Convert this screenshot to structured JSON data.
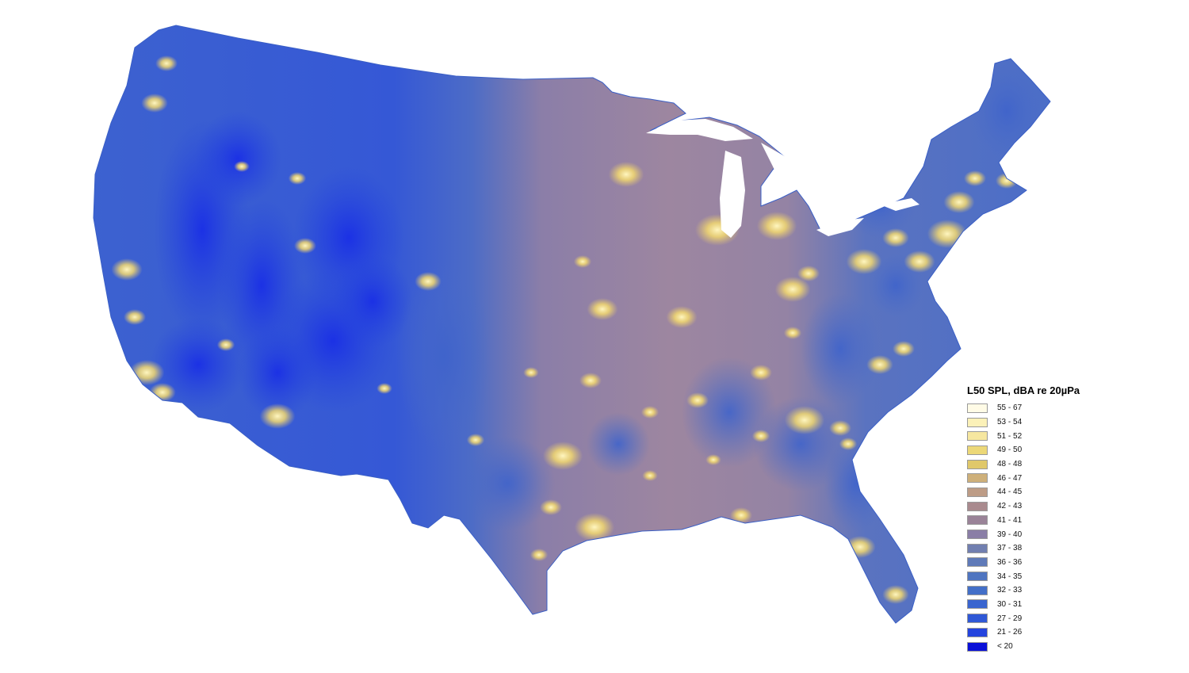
{
  "legend": {
    "title": "L50 SPL, dBA re 20µPa",
    "items": [
      {
        "label": "55 - 67",
        "color": "#fffbe6"
      },
      {
        "label": "53 - 54",
        "color": "#fbf1b8"
      },
      {
        "label": "51 - 52",
        "color": "#f6e7a0"
      },
      {
        "label": "49 - 50",
        "color": "#ecd878"
      },
      {
        "label": "48 - 48",
        "color": "#e0c86a"
      },
      {
        "label": "46 - 47",
        "color": "#ceb07a"
      },
      {
        "label": "44 - 45",
        "color": "#bd9c86"
      },
      {
        "label": "42 - 43",
        "color": "#a98a8e"
      },
      {
        "label": "41 - 41",
        "color": "#9a8398"
      },
      {
        "label": "39 - 40",
        "color": "#8a7ea6"
      },
      {
        "label": "37 - 38",
        "color": "#717fb0"
      },
      {
        "label": "36 - 36",
        "color": "#5f7ab8"
      },
      {
        "label": "34 - 35",
        "color": "#4f75c0"
      },
      {
        "label": "32 - 33",
        "color": "#436fc8"
      },
      {
        "label": "30 - 31",
        "color": "#3a65cf"
      },
      {
        "label": "27 - 29",
        "color": "#2f58d6"
      },
      {
        "label": "21 - 26",
        "color": "#2444de"
      },
      {
        "label": "< 20",
        "color": "#0a10d8"
      }
    ]
  },
  "map": {
    "region": "contiguous-united-states",
    "colors": {
      "west_quiet": "#2a4ee0",
      "west_base": "#3a63d0",
      "plains": "#5a73bd",
      "east_mauve": "#9b86a4",
      "east_blue": "#4a6cc8",
      "city_glow": "#f6e07a"
    }
  }
}
